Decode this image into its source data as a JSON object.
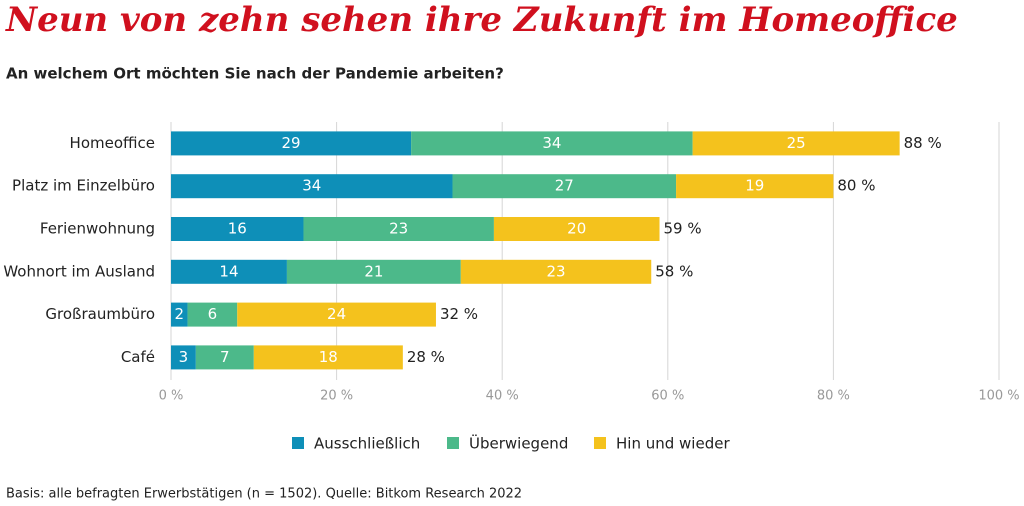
{
  "chart_data": {
    "type": "stacked-bar-horizontal",
    "title": "Neun von zehn sehen ihre Zukunft im Homeoffice",
    "subtitle": "An welchem Ort möchten Sie nach der Pandemie arbeiten?",
    "footnote": "Basis: alle befragten Erwerbstätigen (n = 1502). Quelle: Bitkom Research 2022",
    "categories": [
      "Homeoffice",
      "Platz im Einzelbüro",
      "Ferienwohnung",
      "Wohnort im Ausland",
      "Großraumbüro",
      "Café"
    ],
    "series": [
      {
        "name": "Ausschließlich",
        "color": "#0e8fb8",
        "values": [
          29,
          34,
          16,
          14,
          2,
          3
        ]
      },
      {
        "name": "Überwiegend",
        "color": "#4cb98a",
        "values": [
          34,
          27,
          23,
          21,
          6,
          7
        ]
      },
      {
        "name": "Hin und wieder",
        "color": "#f4c21d",
        "values": [
          25,
          19,
          20,
          23,
          24,
          18
        ]
      }
    ],
    "totals": [
      88,
      80,
      59,
      58,
      32,
      28
    ],
    "total_labels": [
      "88 %",
      "80 %",
      "59 %",
      "58 %",
      "32 %",
      "28 %"
    ],
    "xlim": [
      0,
      100
    ],
    "xticks": [
      {
        "value": 0,
        "label": "0 %"
      },
      {
        "value": 20,
        "label": "20 %"
      },
      {
        "value": 40,
        "label": "40 %"
      },
      {
        "value": 60,
        "label": "60 %"
      },
      {
        "value": 80,
        "label": "80 %"
      },
      {
        "value": 100,
        "label": "100 %"
      }
    ],
    "grid": true,
    "legend": "bottom"
  }
}
